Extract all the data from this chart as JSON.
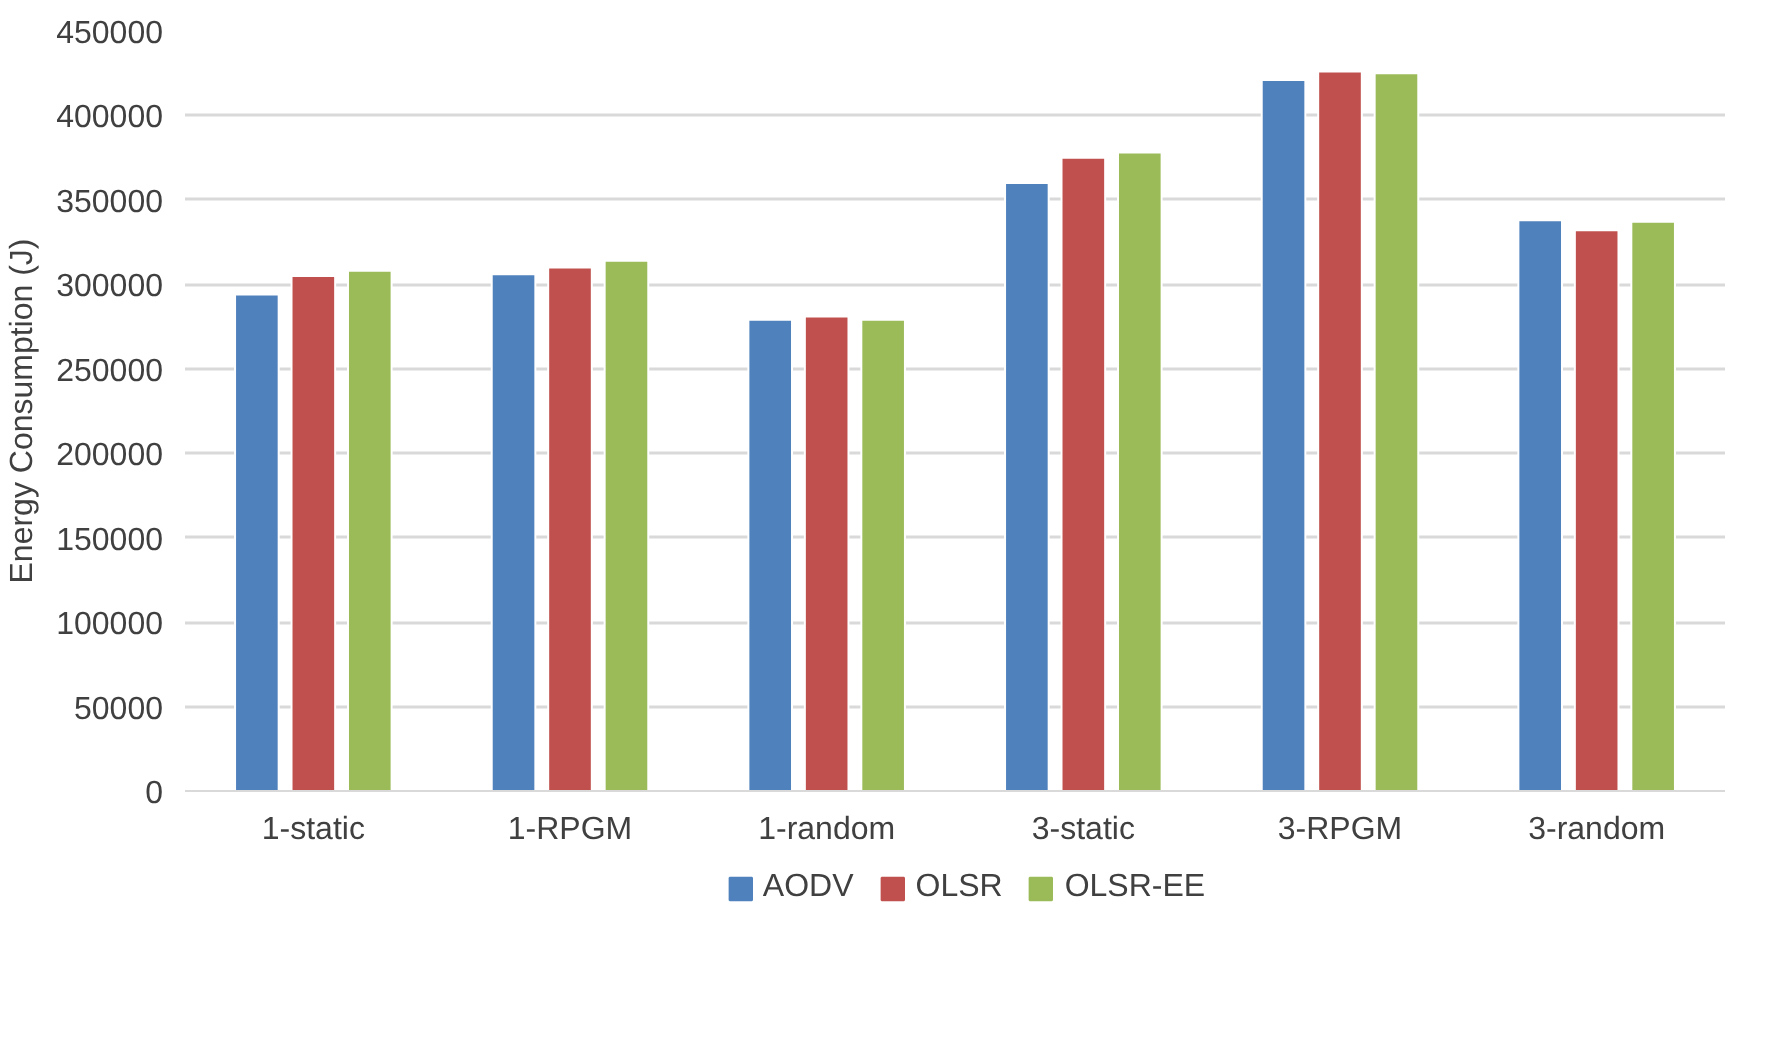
{
  "chart_data": {
    "type": "bar",
    "ylabel": "Energy Consumption (J)",
    "categories": [
      "1-static",
      "1-RPGM",
      "1-random",
      "3-static",
      "3-RPGM",
      "3-random"
    ],
    "series": [
      {
        "name": "AODV",
        "color": "#4f81bd",
        "values": [
          294000,
          306000,
          279000,
          360000,
          421000,
          338000
        ]
      },
      {
        "name": "OLSR",
        "color": "#c0504d",
        "values": [
          305000,
          310000,
          281000,
          375000,
          426000,
          332000
        ]
      },
      {
        "name": "OLSR-EE",
        "color": "#9bbb59",
        "values": [
          308000,
          314000,
          279000,
          378000,
          425000,
          337000
        ]
      }
    ],
    "ylim": [
      0,
      450000
    ],
    "yticks": [
      0,
      50000,
      100000,
      150000,
      200000,
      250000,
      300000,
      350000,
      400000,
      450000
    ],
    "grid": "y",
    "legend": "bottom"
  }
}
